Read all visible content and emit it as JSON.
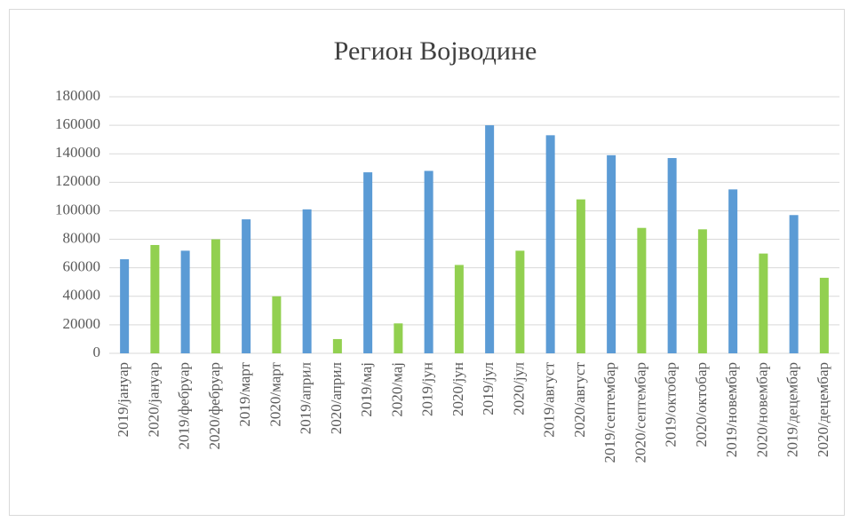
{
  "chart_data": {
    "type": "bar",
    "title": "Регион Војводине",
    "categories": [
      "2019/јануар",
      "2020/јануар",
      "2019/фебруар",
      "2020/фебруар",
      "2019/март",
      "2020/март",
      "2019/април",
      "2020/април",
      "2019/мај",
      "2020/мај",
      "2019/јун",
      "2020/јун",
      "2019/јул",
      "2020/јул",
      "2019/август",
      "2020/август",
      "2019/септембар",
      "2020/септембар",
      "2019/октобар",
      "2020/октобар",
      "2019/новембар",
      "2020/новембар",
      "2019/децембар",
      "2020/децембар"
    ],
    "values": [
      66000,
      76000,
      72000,
      80000,
      94000,
      40000,
      101000,
      10000,
      127000,
      21000,
      128000,
      62000,
      160000,
      72000,
      153000,
      108000,
      139000,
      88000,
      137000,
      87000,
      115000,
      70000,
      97000,
      53000
    ],
    "colors": [
      "#5b9bd5",
      "#92d050",
      "#5b9bd5",
      "#92d050",
      "#5b9bd5",
      "#92d050",
      "#5b9bd5",
      "#92d050",
      "#5b9bd5",
      "#92d050",
      "#5b9bd5",
      "#92d050",
      "#5b9bd5",
      "#92d050",
      "#5b9bd5",
      "#92d050",
      "#5b9bd5",
      "#92d050",
      "#5b9bd5",
      "#92d050",
      "#5b9bd5",
      "#92d050",
      "#5b9bd5",
      "#92d050"
    ],
    "ylim": [
      0,
      180000
    ],
    "yticks": [
      0,
      20000,
      40000,
      60000,
      80000,
      100000,
      120000,
      140000,
      160000,
      180000
    ],
    "grid": true
  }
}
